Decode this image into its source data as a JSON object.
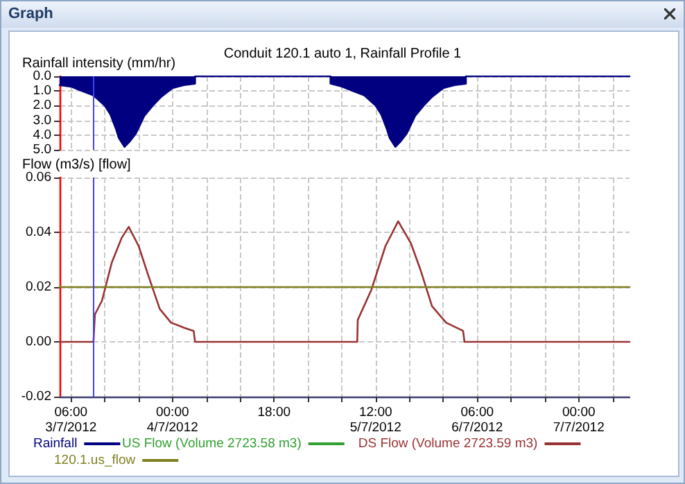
{
  "chart_data": [
    {
      "type": "area",
      "title": "Conduit 120.1 auto 1, Rainfall Profile 1",
      "ylabel": "Rainfall intensity (mm/hr)",
      "annotations": [
        "Graph"
      ],
      "xlim": [
        "2012-07-03T04:00",
        "2012-07-07T09:00"
      ],
      "xticks": [
        {
          "value": "2012-07-03T06:00",
          "label": null
        },
        {
          "value": "2012-07-03T12:00",
          "label": null
        },
        {
          "value": "2012-07-03T18:00",
          "label": null
        },
        {
          "value": "2012-07-04T00:00",
          "label": null
        },
        {
          "value": "2012-07-04T06:00",
          "label": null
        },
        {
          "value": "2012-07-04T12:00",
          "label": null
        },
        {
          "value": "2012-07-04T18:00",
          "label": null
        },
        {
          "value": "2012-07-05T00:00",
          "label": null
        },
        {
          "value": "2012-07-05T06:00",
          "label": null
        },
        {
          "value": "2012-07-05T12:00",
          "label": null
        },
        {
          "value": "2012-07-05T18:00",
          "label": null
        },
        {
          "value": "2012-07-06T00:00",
          "label": null
        },
        {
          "value": "2012-07-06T06:00",
          "label": null
        },
        {
          "value": "2012-07-06T12:00",
          "label": null
        },
        {
          "value": "2012-07-06T18:00",
          "label": null
        },
        {
          "value": "2012-07-07T00:00",
          "label": null
        },
        {
          "value": "2012-07-07T06:00",
          "label": null
        }
      ],
      "ylim": [
        5,
        0
      ],
      "yticks": [
        {
          "value": 0,
          "label": "0.0"
        },
        {
          "value": 1,
          "label": "1.0"
        },
        {
          "value": 2,
          "label": "2.0"
        },
        {
          "value": 3,
          "label": "3.0"
        },
        {
          "value": 4,
          "label": "4.0"
        },
        {
          "value": 5,
          "label": "5.0"
        }
      ],
      "tick_labels": "y",
      "grid": true,
      "legend": "bottom",
      "marker": "none",
      "ref_lines": [
        {
          "axis": "x",
          "value": "2012-07-03T10:00",
          "color": "#4040ff"
        }
      ],
      "series": [
        {
          "name": "Rainfall",
          "color": "#000080",
          "x": [
            "2012-07-03T04:00",
            "2012-07-03T06:00",
            "2012-07-03T08:00",
            "2012-07-03T10:00",
            "2012-07-03T12:00",
            "2012-07-03T13:00",
            "2012-07-03T14:00",
            "2012-07-03T14:30",
            "2012-07-03T15:30",
            "2012-07-03T16:30",
            "2012-07-03T17:30",
            "2012-07-03T19:00",
            "2012-07-03T20:30",
            "2012-07-03T22:00",
            "2012-07-04T00:00",
            "2012-07-04T02:00",
            "2012-07-04T04:00",
            "2012-07-04T04:00",
            "2012-07-05T04:00",
            "2012-07-05T04:00",
            "2012-07-05T06:00",
            "2012-07-05T08:00",
            "2012-07-05T10:00",
            "2012-07-05T12:00",
            "2012-07-05T13:00",
            "2012-07-05T14:00",
            "2012-07-05T14:30",
            "2012-07-05T15:30",
            "2012-07-05T16:30",
            "2012-07-05T17:30",
            "2012-07-05T19:00",
            "2012-07-05T20:30",
            "2012-07-05T22:00",
            "2012-07-06T00:00",
            "2012-07-06T02:00",
            "2012-07-06T04:00",
            "2012-07-06T04:00",
            "2012-07-07T09:00"
          ],
          "values": [
            0.6,
            0.7,
            1.0,
            1.3,
            2.0,
            2.6,
            3.6,
            4.2,
            4.8,
            4.4,
            3.9,
            2.7,
            2.0,
            1.4,
            0.8,
            0.6,
            0.5,
            0,
            0,
            0.5,
            0.7,
            1.0,
            1.3,
            2.0,
            2.6,
            3.6,
            4.2,
            4.8,
            4.4,
            3.9,
            2.7,
            2.0,
            1.4,
            0.8,
            0.6,
            0.5,
            0,
            0
          ]
        }
      ]
    },
    {
      "type": "line",
      "ylabel": "Flow (m3/s) [flow]",
      "xlim": [
        "2012-07-03T04:00",
        "2012-07-07T09:00"
      ],
      "xticks": [
        {
          "value": "2012-07-03T06:00",
          "label": "06:00\n3/7/2012"
        },
        {
          "value": "2012-07-03T12:00",
          "label": null
        },
        {
          "value": "2012-07-03T18:00",
          "label": null
        },
        {
          "value": "2012-07-04T00:00",
          "label": "00:00\n4/7/2012"
        },
        {
          "value": "2012-07-04T06:00",
          "label": null
        },
        {
          "value": "2012-07-04T12:00",
          "label": null
        },
        {
          "value": "2012-07-04T18:00",
          "label": "18:00"
        },
        {
          "value": "2012-07-05T00:00",
          "label": null
        },
        {
          "value": "2012-07-05T06:00",
          "label": null
        },
        {
          "value": "2012-07-05T12:00",
          "label": "12:00\n5/7/2012"
        },
        {
          "value": "2012-07-05T18:00",
          "label": null
        },
        {
          "value": "2012-07-06T00:00",
          "label": null
        },
        {
          "value": "2012-07-06T06:00",
          "label": "06:00\n6/7/2012"
        },
        {
          "value": "2012-07-06T12:00",
          "label": null
        },
        {
          "value": "2012-07-06T18:00",
          "label": null
        },
        {
          "value": "2012-07-07T00:00",
          "label": "00:00\n7/7/2012"
        },
        {
          "value": "2012-07-07T06:00",
          "label": null
        }
      ],
      "ylim": [
        -0.02,
        0.06
      ],
      "yticks": [
        {
          "value": -0.02,
          "label": "-0.02"
        },
        {
          "value": 0,
          "label": "0.00"
        },
        {
          "value": 0.02,
          "label": "0.02"
        },
        {
          "value": 0.04,
          "label": "0.04"
        },
        {
          "value": 0.06,
          "label": "0.06"
        }
      ],
      "grid": true,
      "legend": "bottom",
      "marker": "none",
      "line_style": "solid",
      "ref_lines": [
        {
          "axis": "x",
          "value": "2012-07-03T10:00",
          "color": "#4040ff"
        }
      ],
      "series": [
        {
          "name": "US Flow (Volume 2723.58 m3)",
          "color": "#33a033"
        },
        {
          "name": "DS Flow (Volume 2723.59 m3)",
          "color": "#993333",
          "x": [
            "2012-07-03T04:00",
            "2012-07-03T10:00",
            "2012-07-03T10:15",
            "2012-07-03T11:30",
            "2012-07-03T13:15",
            "2012-07-03T15:00",
            "2012-07-03T16:15",
            "2012-07-03T18:00",
            "2012-07-03T19:45",
            "2012-07-03T21:45",
            "2012-07-03T23:45",
            "2012-07-04T02:15",
            "2012-07-04T03:45",
            "2012-07-04T04:00",
            "2012-07-05T08:45",
            "2012-07-05T08:50",
            "2012-07-05T11:15",
            "2012-07-05T13:45",
            "2012-07-05T16:00",
            "2012-07-05T18:15",
            "2012-07-05T20:00",
            "2012-07-05T22:00",
            "2012-07-06T00:30",
            "2012-07-06T03:30",
            "2012-07-06T03:45",
            "2012-07-07T09:00"
          ],
          "values": [
            0,
            0,
            0.01,
            0.015,
            0.029,
            0.038,
            0.042,
            0.035,
            0.024,
            0.012,
            0.007,
            0.005,
            0.004,
            0,
            0,
            0.008,
            0.019,
            0.035,
            0.044,
            0.036,
            0.026,
            0.013,
            0.007,
            0.004,
            0,
            0
          ]
        },
        {
          "name": "120.1.us_flow",
          "color": "#808020",
          "x": [
            "2012-07-03T04:00",
            "2012-07-07T09:00"
          ],
          "values": [
            0.02,
            0.02
          ]
        }
      ]
    }
  ]
}
